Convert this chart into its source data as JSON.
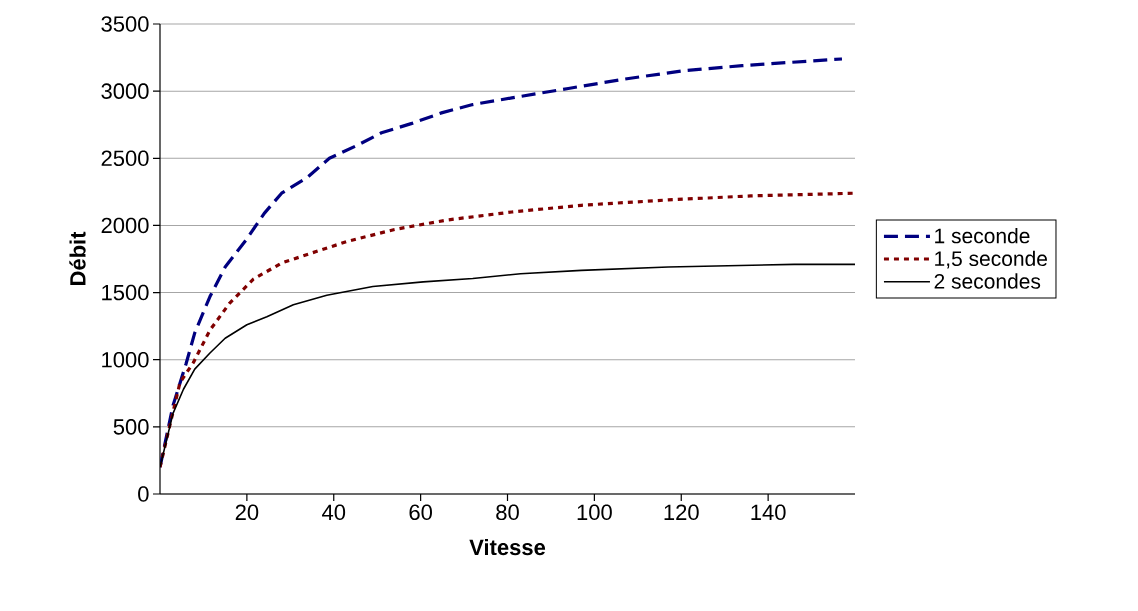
{
  "chart_data": {
    "type": "line",
    "xlabel": "Vitesse",
    "ylabel": "Débit",
    "xlim": [
      0,
      160
    ],
    "xticks": [
      20,
      40,
      60,
      80,
      100,
      120,
      140
    ],
    "ylim": [
      0,
      3500
    ],
    "yticks": [
      0,
      500,
      1000,
      1500,
      2000,
      2500,
      3000,
      3500
    ],
    "grid": "y",
    "legend": "right",
    "series": [
      {
        "name": "1 seconde",
        "color": "#000080",
        "line_style": "dashed",
        "x": [
          0,
          3,
          6,
          8,
          11.5,
          15,
          20,
          24,
          28,
          34,
          39,
          45,
          51,
          58,
          65,
          72,
          81,
          94,
          107,
          120,
          134,
          157
        ],
        "values": [
          200,
          660,
          970,
          1200,
          1470,
          1690,
          1900,
          2090,
          2240,
          2360,
          2500,
          2590,
          2690,
          2760,
          2840,
          2900,
          2950,
          3020,
          3090,
          3150,
          3190,
          3240
        ]
      },
      {
        "name": "1,5 seconde",
        "color": "#800000",
        "line_style": "dotted",
        "x": [
          0,
          4.6,
          7.7,
          11.5,
          16,
          21.5,
          28,
          34.5,
          43,
          54,
          66,
          81,
          97,
          117,
          136,
          160
        ],
        "values": [
          200,
          830,
          980,
          1220,
          1420,
          1600,
          1720,
          1790,
          1880,
          1970,
          2040,
          2100,
          2150,
          2190,
          2220,
          2240
        ]
      },
      {
        "name": "2 secondes",
        "color": "#000000",
        "line_style": "solid",
        "x": [
          0,
          3,
          5.4,
          8,
          11.5,
          15,
          20,
          24.6,
          30.7,
          38.4,
          49,
          60.6,
          72,
          83,
          97,
          117,
          146,
          160
        ],
        "values": [
          200,
          600,
          780,
          930,
          1050,
          1160,
          1260,
          1320,
          1410,
          1480,
          1545,
          1580,
          1605,
          1640,
          1665,
          1690,
          1710,
          1710
        ]
      }
    ]
  }
}
